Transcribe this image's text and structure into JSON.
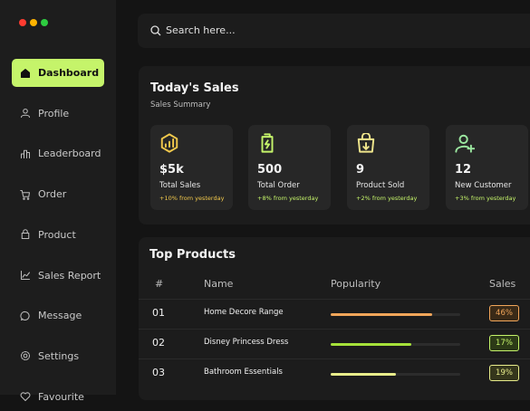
{
  "sidebar": {
    "nav": [
      "Dashboard",
      "Profile",
      "Leaderboard",
      "Order",
      "Product",
      "Sales Report",
      "Message",
      "Settings",
      "Favourite"
    ]
  },
  "search": {
    "placeholder": "Search here..."
  },
  "sales": {
    "title": "Today's Sales",
    "subtitle": "Sales Summary",
    "stats": [
      {
        "value": "$5k",
        "label": "Total Sales",
        "change": "+10% from yesterday"
      },
      {
        "value": "500",
        "label": "Total Order",
        "change": "+8% from yesterday"
      },
      {
        "value": "9",
        "label": "Product Sold",
        "change": "+2% from yesterday"
      },
      {
        "value": "12",
        "label": "New Customer",
        "change": "+3% from yesterday"
      }
    ]
  },
  "products": {
    "title": "Top Products",
    "columns": [
      "#",
      "Name",
      "Popularity",
      "Sales"
    ],
    "rows": [
      {
        "rank": "01",
        "name": "Home Decore Range",
        "popularity": 78,
        "sales": "46%"
      },
      {
        "rank": "02",
        "name": "Disney Princess Dress",
        "popularity": 62,
        "sales": "17%"
      },
      {
        "rank": "03",
        "name": "Bathroom Essentials",
        "popularity": 50,
        "sales": "19%"
      }
    ]
  }
}
